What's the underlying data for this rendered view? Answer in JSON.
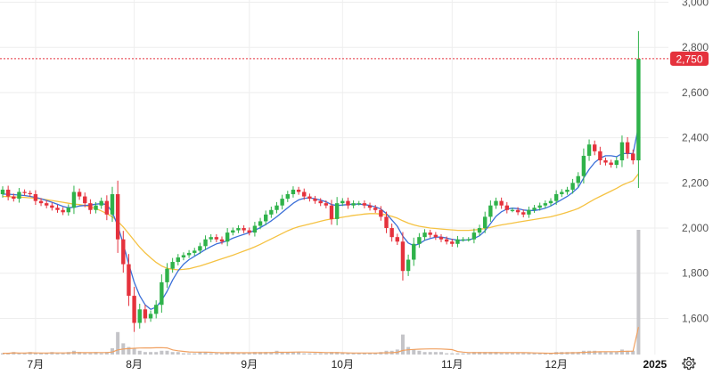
{
  "chart_data": {
    "type": "candlestick",
    "y_ticks": [
      1600,
      1800,
      2000,
      2200,
      2400,
      2600,
      2800,
      3000
    ],
    "y_tick_labels": [
      "1,600",
      "1,800",
      "2,000",
      "2,200",
      "2,400",
      "2,600",
      "2,800",
      "3,000"
    ],
    "ylim": [
      1440,
      3010
    ],
    "x_labels": [
      {
        "label": "7月",
        "index": 6
      },
      {
        "label": "8月",
        "index": 24
      },
      {
        "label": "9月",
        "index": 45
      },
      {
        "label": "10月",
        "index": 62
      },
      {
        "label": "11月",
        "index": 82
      },
      {
        "label": "12月",
        "index": 101
      },
      {
        "label": "2025",
        "index": 119,
        "bold": true
      }
    ],
    "current_price": 2750,
    "current_price_label": "2,750",
    "grid": true,
    "colors": {
      "up": "#2fb24a",
      "down": "#e5323d",
      "ma_short": "#3b6fd8",
      "ma_long": "#f5c242",
      "volume": "#c4c4c8",
      "volume_line": "#f0a060",
      "grid": "#eeeeee",
      "price_label_bg": "#e5323d"
    },
    "close": [
      2170,
      2140,
      2130,
      2160,
      2155,
      2150,
      2120,
      2110,
      2100,
      2090,
      2080,
      2070,
      2090,
      2160,
      2140,
      2110,
      2080,
      2100,
      2120,
      2060,
      2150,
      1950,
      1840,
      1700,
      1580,
      1640,
      1600,
      1620,
      1660,
      1760,
      1820,
      1850,
      1870,
      1880,
      1890,
      1900,
      1920,
      1950,
      1960,
      1950,
      1940,
      1980,
      1990,
      2000,
      1990,
      1980,
      2010,
      2030,
      2060,
      2080,
      2100,
      2130,
      2150,
      2170,
      2160,
      2140,
      2130,
      2120,
      2110,
      2100,
      2040,
      2110,
      2120,
      2100,
      2110,
      2110,
      2100,
      2090,
      2080,
      2050,
      2000,
      1960,
      1940,
      1810,
      1860,
      1930,
      1960,
      1980,
      1970,
      1960,
      1950,
      1940,
      1930,
      1950,
      1950,
      1950,
      1980,
      2000,
      2050,
      2100,
      2120,
      2100,
      2080,
      2080,
      2070,
      2060,
      2080,
      2090,
      2100,
      2110,
      2120,
      2150,
      2160,
      2170,
      2200,
      2230,
      2320,
      2370,
      2340,
      2300,
      2290,
      2280,
      2300,
      2380,
      2330,
      2300,
      2750
    ],
    "ma_short": [
      2150,
      2150,
      2148,
      2146,
      2144,
      2140,
      2136,
      2130,
      2122,
      2114,
      2105,
      2096,
      2090,
      2092,
      2098,
      2100,
      2102,
      2106,
      2108,
      2104,
      2070,
      2010,
      1930,
      1840,
      1760,
      1700,
      1660,
      1640,
      1650,
      1680,
      1720,
      1770,
      1810,
      1840,
      1860,
      1875,
      1890,
      1905,
      1918,
      1930,
      1936,
      1944,
      1955,
      1964,
      1972,
      1980,
      1990,
      2002,
      2016,
      2032,
      2050,
      2070,
      2090,
      2110,
      2125,
      2132,
      2134,
      2130,
      2124,
      2116,
      2104,
      2100,
      2102,
      2104,
      2106,
      2106,
      2104,
      2100,
      2094,
      2084,
      2064,
      2036,
      2008,
      1964,
      1934,
      1922,
      1930,
      1946,
      1954,
      1960,
      1960,
      1956,
      1950,
      1946,
      1946,
      1948,
      1954,
      1966,
      1988,
      2020,
      2052,
      2072,
      2084,
      2088,
      2086,
      2080,
      2078,
      2078,
      2082,
      2088,
      2098,
      2112,
      2126,
      2140,
      2158,
      2180,
      2222,
      2260,
      2290,
      2310,
      2320,
      2320,
      2316,
      2330,
      2330,
      2330,
      2450
    ],
    "ma_long": [
      2140,
      2139,
      2138,
      2137,
      2136,
      2134,
      2132,
      2129,
      2126,
      2122,
      2118,
      2114,
      2110,
      2106,
      2104,
      2100,
      2094,
      2086,
      2076,
      2064,
      2050,
      2030,
      2005,
      1975,
      1945,
      1915,
      1890,
      1868,
      1848,
      1832,
      1822,
      1817,
      1815,
      1817,
      1820,
      1826,
      1832,
      1840,
      1848,
      1856,
      1864,
      1872,
      1880,
      1889,
      1898,
      1907,
      1917,
      1928,
      1940,
      1952,
      1964,
      1976,
      1988,
      1998,
      2006,
      2012,
      2018,
      2024,
      2030,
      2036,
      2040,
      2044,
      2048,
      2052,
      2056,
      2059,
      2062,
      2064,
      2064,
      2062,
      2058,
      2052,
      2044,
      2032,
      2022,
      2014,
      2008,
      2004,
      2000,
      1998,
      1996,
      1994,
      1992,
      1990,
      1990,
      1990,
      1992,
      1994,
      1998,
      2003,
      2009,
      2014,
      2018,
      2022,
      2026,
      2030,
      2034,
      2038,
      2042,
      2046,
      2050,
      2056,
      2063,
      2070,
      2078,
      2087,
      2100,
      2114,
      2128,
      2140,
      2152,
      2164,
      2176,
      2190,
      2200,
      2210,
      2240
    ],
    "volume": [
      0.01,
      0.01,
      0.02,
      0.01,
      0.01,
      0.02,
      0.01,
      0.01,
      0.01,
      0.02,
      0.01,
      0.01,
      0.02,
      0.03,
      0.02,
      0.01,
      0.01,
      0.02,
      0.01,
      0.02,
      0.05,
      0.18,
      0.09,
      0.06,
      0.05,
      0.03,
      0.02,
      0.02,
      0.02,
      0.03,
      0.03,
      0.02,
      0.02,
      0.01,
      0.01,
      0.01,
      0.02,
      0.02,
      0.01,
      0.01,
      0.01,
      0.02,
      0.02,
      0.01,
      0.01,
      0.01,
      0.02,
      0.02,
      0.02,
      0.02,
      0.03,
      0.02,
      0.02,
      0.02,
      0.02,
      0.01,
      0.01,
      0.01,
      0.01,
      0.01,
      0.02,
      0.02,
      0.01,
      0.01,
      0.01,
      0.01,
      0.01,
      0.01,
      0.01,
      0.02,
      0.03,
      0.03,
      0.04,
      0.16,
      0.06,
      0.04,
      0.03,
      0.02,
      0.02,
      0.02,
      0.02,
      0.01,
      0.01,
      0.01,
      0.01,
      0.01,
      0.02,
      0.02,
      0.02,
      0.02,
      0.02,
      0.01,
      0.01,
      0.01,
      0.01,
      0.01,
      0.01,
      0.01,
      0.01,
      0.01,
      0.01,
      0.02,
      0.02,
      0.02,
      0.02,
      0.02,
      0.03,
      0.03,
      0.03,
      0.02,
      0.02,
      0.02,
      0.02,
      0.04,
      0.03,
      0.03,
      1.0
    ]
  }
}
